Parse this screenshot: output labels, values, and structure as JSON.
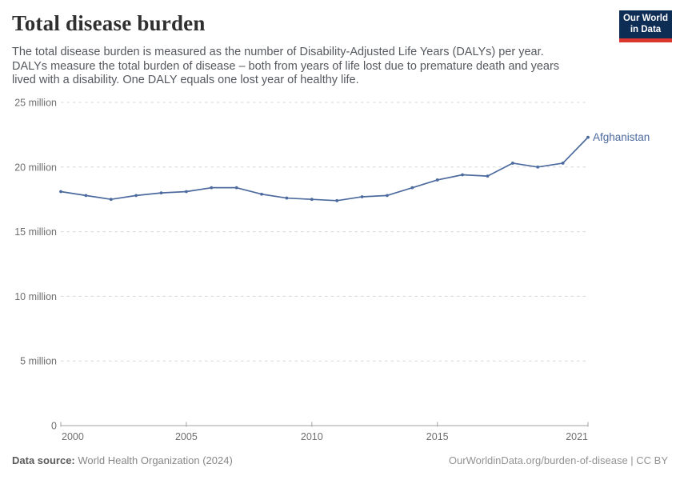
{
  "header": {
    "title": "Total disease burden",
    "subtitle_lines": [
      "The total disease burden is measured as the number of Disability-Adjusted Life Years (DALYs) per year.",
      "DALYs measure the total burden of disease – both from years of life lost due to premature death and years",
      "lived with a disability. One DALY equals one lost year of healthy life."
    ],
    "logo": {
      "line1": "Our World",
      "line2": "in Data"
    }
  },
  "chart_data": {
    "type": "line",
    "title": "Total disease burden",
    "xlabel": "",
    "ylabel": "",
    "units": "million DALYs per year",
    "grid": "horizontal-dashed",
    "legend_position": "end-of-line-label",
    "xlim": [
      2000,
      2021
    ],
    "ylim": [
      0,
      25
    ],
    "x": [
      2000,
      2001,
      2002,
      2003,
      2004,
      2005,
      2006,
      2007,
      2008,
      2009,
      2010,
      2011,
      2012,
      2013,
      2014,
      2015,
      2016,
      2017,
      2018,
      2019,
      2020,
      2021
    ],
    "series": [
      {
        "name": "Afghanistan",
        "color": "#4c6a9e",
        "values": [
          18.1,
          17.8,
          17.5,
          17.8,
          18.0,
          18.1,
          18.4,
          18.4,
          17.9,
          17.6,
          17.5,
          17.4,
          17.7,
          17.8,
          18.4,
          19.0,
          19.4,
          19.3,
          20.3,
          20.0,
          20.3,
          22.3
        ]
      }
    ],
    "yticks": [
      {
        "value": 0,
        "label": "0"
      },
      {
        "value": 5,
        "label": "5 million"
      },
      {
        "value": 10,
        "label": "10 million"
      },
      {
        "value": 15,
        "label": "15 million"
      },
      {
        "value": 20,
        "label": "20 million"
      },
      {
        "value": 25,
        "label": "25 million"
      }
    ],
    "xticks": [
      {
        "value": 2000,
        "label": "2000"
      },
      {
        "value": 2005,
        "label": "2005"
      },
      {
        "value": 2010,
        "label": "2010"
      },
      {
        "value": 2015,
        "label": "2015"
      },
      {
        "value": 2021,
        "label": "2021"
      }
    ]
  },
  "footer": {
    "source_label": "Data source:",
    "source_value": "World Health Organization (2024)",
    "credit": "OurWorldinData.org/burden-of-disease | CC BY"
  },
  "colors": {
    "accent_line": "#4c6a9e",
    "logo_background": "#0d2d55",
    "logo_underline": "#dc352d",
    "gridline": "#d7d7d7",
    "axis": "#a1a1a1",
    "tick_text": "#6e6e6e"
  }
}
